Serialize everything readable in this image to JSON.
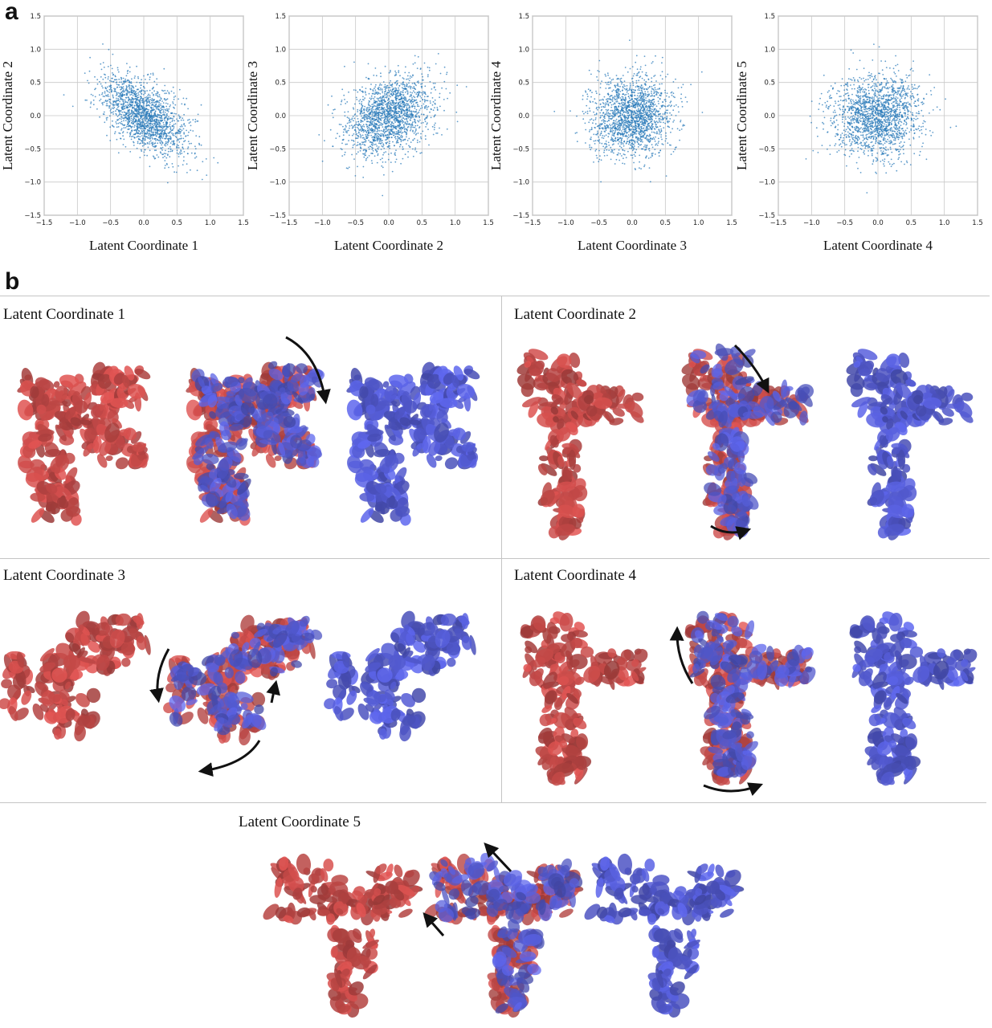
{
  "panel_a": {
    "letter": "a",
    "tick_labels": [
      "−1.5",
      "−1.0",
      "−0.5",
      "0.0",
      "0.5",
      "1.0",
      "1.5"
    ]
  },
  "panel_b": {
    "letter": "b",
    "labels": [
      "Latent Coordinate 1",
      "Latent Coordinate 2",
      "Latent Coordinate 3",
      "Latent Coordinate 4",
      "Latent Coordinate 5"
    ]
  },
  "colors": {
    "scatter": "#2b7bba",
    "state_red": "#d9514f",
    "state_blue": "#5b63e6",
    "grid": "#c8c8c8"
  },
  "chart_data": [
    {
      "type": "scatter",
      "xlabel": "Latent Coordinate 1",
      "ylabel": "Latent Coordinate 2",
      "xlim": [
        -1.5,
        1.5
      ],
      "ylim": [
        -1.5,
        1.5
      ],
      "grid": true,
      "cloud": {
        "x_mean": 0.0,
        "y_mean": 0.0,
        "x_sd": 0.32,
        "y_sd": 0.3,
        "correlation": -0.55
      }
    },
    {
      "type": "scatter",
      "xlabel": "Latent Coordinate 2",
      "ylabel": "Latent Coordinate 3",
      "xlim": [
        -1.5,
        1.5
      ],
      "ylim": [
        -1.5,
        1.5
      ],
      "grid": true,
      "cloud": {
        "x_mean": 0.0,
        "y_mean": 0.0,
        "x_sd": 0.32,
        "y_sd": 0.3,
        "correlation": 0.3
      }
    },
    {
      "type": "scatter",
      "xlabel": "Latent Coordinate 3",
      "ylabel": "Latent Coordinate 4",
      "xlim": [
        -1.5,
        1.5
      ],
      "ylim": [
        -1.5,
        1.5
      ],
      "grid": true,
      "cloud": {
        "x_mean": 0.0,
        "y_mean": 0.0,
        "x_sd": 0.3,
        "y_sd": 0.3,
        "correlation": 0.05
      }
    },
    {
      "type": "scatter",
      "xlabel": "Latent Coordinate 4",
      "ylabel": "Latent Coordinate 5",
      "xlim": [
        -1.5,
        1.5
      ],
      "ylim": [
        -1.5,
        1.5
      ],
      "grid": true,
      "cloud": {
        "x_mean": 0.0,
        "y_mean": 0.0,
        "x_sd": 0.34,
        "y_sd": 0.32,
        "correlation": 0.05
      }
    }
  ]
}
